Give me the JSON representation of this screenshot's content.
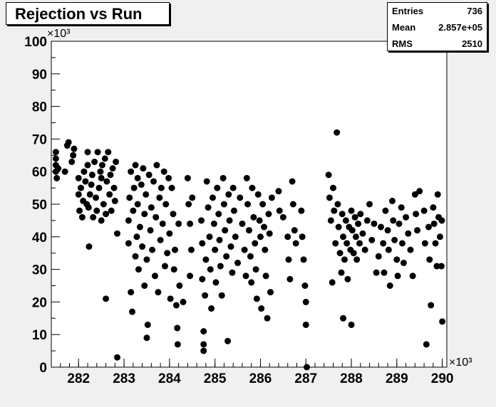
{
  "title": "Rejection vs Run",
  "stats": [
    {
      "label": "Entries",
      "value": "736"
    },
    {
      "label": "Mean",
      "value": "2.857e+05"
    },
    {
      "label": "RMS",
      "value": "2510"
    }
  ],
  "chart_data": {
    "type": "scatter",
    "title": "Rejection vs Run",
    "xlabel": "",
    "ylabel": "",
    "x_multiplier": "×10³",
    "y_multiplier": "×10³",
    "xlim": [
      281.4,
      290.1
    ],
    "ylim": [
      0,
      100
    ],
    "x_ticks": [
      282,
      283,
      284,
      285,
      286,
      287,
      288,
      289,
      290
    ],
    "y_ticks": [
      0,
      10,
      20,
      30,
      40,
      50,
      60,
      70,
      80,
      90,
      100
    ],
    "grid": false,
    "legend": "none",
    "marker_color": "#000000",
    "series": [
      {
        "points": [
          [
            281.5,
            60
          ],
          [
            281.5,
            62
          ],
          [
            281.5,
            64
          ],
          [
            281.5,
            66
          ],
          [
            281.52,
            58
          ],
          [
            281.55,
            61
          ],
          [
            281.7,
            60
          ],
          [
            281.75,
            68
          ],
          [
            281.78,
            69
          ],
          [
            281.85,
            63
          ],
          [
            281.88,
            65
          ],
          [
            281.9,
            67
          ],
          [
            282.0,
            53
          ],
          [
            282.0,
            58
          ],
          [
            282.02,
            48
          ],
          [
            282.05,
            55
          ],
          [
            282.08,
            46
          ],
          [
            282.1,
            51
          ],
          [
            282.12,
            60
          ],
          [
            282.15,
            57
          ],
          [
            282.18,
            50
          ],
          [
            282.2,
            62
          ],
          [
            282.2,
            66
          ],
          [
            282.22,
            49
          ],
          [
            282.23,
            37
          ],
          [
            282.25,
            53
          ],
          [
            282.28,
            56
          ],
          [
            282.3,
            59
          ],
          [
            282.32,
            46
          ],
          [
            282.35,
            63
          ],
          [
            282.38,
            52
          ],
          [
            282.4,
            48
          ],
          [
            282.42,
            66
          ],
          [
            282.45,
            55
          ],
          [
            282.48,
            60
          ],
          [
            282.5,
            45
          ],
          [
            282.5,
            58
          ],
          [
            282.52,
            62
          ],
          [
            282.55,
            50
          ],
          [
            282.58,
            64
          ],
          [
            282.6,
            47
          ],
          [
            282.62,
            57
          ],
          [
            282.65,
            66
          ],
          [
            282.68,
            53
          ],
          [
            282.7,
            59
          ],
          [
            282.72,
            48
          ],
          [
            282.75,
            61
          ],
          [
            282.78,
            55
          ],
          [
            282.8,
            51
          ],
          [
            282.82,
            63
          ],
          [
            282.85,
            41
          ],
          [
            282.85,
            3
          ],
          [
            282.6,
            21
          ],
          [
            283.1,
            38
          ],
          [
            283.1,
            45
          ],
          [
            283.12,
            52
          ],
          [
            283.15,
            60
          ],
          [
            283.15,
            23
          ],
          [
            283.18,
            17
          ],
          [
            283.2,
            48
          ],
          [
            283.22,
            55
          ],
          [
            283.25,
            34
          ],
          [
            283.25,
            62
          ],
          [
            283.28,
            40
          ],
          [
            283.3,
            50
          ],
          [
            283.3,
            58
          ],
          [
            283.32,
            30
          ],
          [
            283.35,
            43
          ],
          [
            283.38,
            56
          ],
          [
            283.4,
            37
          ],
          [
            283.42,
            61
          ],
          [
            283.45,
            47
          ],
          [
            283.45,
            25
          ],
          [
            283.48,
            53
          ],
          [
            283.5,
            33
          ],
          [
            283.5,
            9
          ],
          [
            283.52,
            13
          ],
          [
            283.55,
            59
          ],
          [
            283.58,
            42
          ],
          [
            283.6,
            49
          ],
          [
            283.62,
            36
          ],
          [
            283.65,
            57
          ],
          [
            283.68,
            28
          ],
          [
            283.7,
            46
          ],
          [
            283.72,
            62
          ],
          [
            283.75,
            23
          ],
          [
            283.78,
            52
          ],
          [
            283.8,
            39
          ],
          [
            283.82,
            55
          ],
          [
            283.85,
            44
          ],
          [
            283.88,
            60
          ],
          [
            283.9,
            31
          ],
          [
            283.92,
            50
          ],
          [
            283.95,
            35
          ],
          [
            283.98,
            58
          ],
          [
            284.0,
            41
          ],
          [
            284.02,
            21
          ],
          [
            284.05,
            55
          ],
          [
            284.08,
            47
          ],
          [
            284.1,
            30
          ],
          [
            284.12,
            36
          ],
          [
            284.15,
            19
          ],
          [
            284.17,
            12
          ],
          [
            284.18,
            7
          ],
          [
            284.2,
            44
          ],
          [
            284.22,
            25
          ],
          [
            284.3,
            20
          ],
          [
            284.4,
            58
          ],
          [
            284.42,
            50
          ],
          [
            284.45,
            44
          ],
          [
            284.45,
            28
          ],
          [
            284.48,
            36
          ],
          [
            284.5,
            52
          ],
          [
            284.7,
            45
          ],
          [
            284.72,
            38
          ],
          [
            284.72,
            27
          ],
          [
            284.75,
            11
          ],
          [
            284.75,
            7
          ],
          [
            284.75,
            5
          ],
          [
            284.78,
            22
          ],
          [
            284.8,
            33
          ],
          [
            284.82,
            57
          ],
          [
            284.85,
            49
          ],
          [
            284.88,
            40
          ],
          [
            284.9,
            30
          ],
          [
            284.92,
            18
          ],
          [
            284.95,
            52
          ],
          [
            284.98,
            44
          ],
          [
            285.0,
            36
          ],
          [
            285.02,
            26
          ],
          [
            285.05,
            55
          ],
          [
            285.08,
            47
          ],
          [
            285.1,
            39
          ],
          [
            285.12,
            31
          ],
          [
            285.15,
            22
          ],
          [
            285.18,
            58
          ],
          [
            285.2,
            50
          ],
          [
            285.22,
            42
          ],
          [
            285.25,
            34
          ],
          [
            285.28,
            8
          ],
          [
            285.3,
            53
          ],
          [
            285.32,
            45
          ],
          [
            285.35,
            37
          ],
          [
            285.38,
            29
          ],
          [
            285.4,
            55
          ],
          [
            285.42,
            48
          ],
          [
            285.45,
            40
          ],
          [
            285.5,
            32
          ],
          [
            285.55,
            52
          ],
          [
            285.6,
            44
          ],
          [
            285.65,
            36
          ],
          [
            285.68,
            28
          ],
          [
            285.7,
            58
          ],
          [
            285.72,
            50
          ],
          [
            285.75,
            42
          ],
          [
            285.78,
            34
          ],
          [
            285.8,
            26
          ],
          [
            285.82,
            55
          ],
          [
            285.85,
            46
          ],
          [
            285.88,
            38
          ],
          [
            285.9,
            30
          ],
          [
            285.92,
            21
          ],
          [
            285.95,
            53
          ],
          [
            285.98,
            45
          ],
          [
            286.0,
            40
          ],
          [
            286.02,
            18
          ],
          [
            286.05,
            50
          ],
          [
            286.08,
            43
          ],
          [
            286.1,
            36
          ],
          [
            286.12,
            28
          ],
          [
            286.15,
            15
          ],
          [
            286.18,
            47
          ],
          [
            286.2,
            41
          ],
          [
            286.22,
            23
          ],
          [
            286.25,
            52
          ],
          [
            286.4,
            54
          ],
          [
            286.42,
            48
          ],
          [
            286.5,
            46
          ],
          [
            286.6,
            40
          ],
          [
            286.62,
            33
          ],
          [
            286.65,
            27
          ],
          [
            286.7,
            57
          ],
          [
            286.72,
            50
          ],
          [
            286.75,
            42
          ],
          [
            286.78,
            38
          ],
          [
            286.9,
            48
          ],
          [
            286.92,
            40
          ],
          [
            286.95,
            33
          ],
          [
            286.98,
            25
          ],
          [
            287.0,
            20
          ],
          [
            287.0,
            13
          ],
          [
            287.02,
            0
          ],
          [
            287.5,
            59
          ],
          [
            287.52,
            52
          ],
          [
            287.55,
            45
          ],
          [
            287.58,
            26
          ],
          [
            287.6,
            55
          ],
          [
            287.62,
            48
          ],
          [
            287.65,
            38
          ],
          [
            287.68,
            72
          ],
          [
            287.7,
            50
          ],
          [
            287.72,
            43
          ],
          [
            287.75,
            35
          ],
          [
            287.78,
            29
          ],
          [
            287.8,
            47
          ],
          [
            287.82,
            40
          ],
          [
            287.82,
            15
          ],
          [
            287.85,
            33
          ],
          [
            287.88,
            45
          ],
          [
            287.9,
            38
          ],
          [
            287.92,
            27
          ],
          [
            287.95,
            43
          ],
          [
            287.98,
            36
          ],
          [
            288.0,
            48
          ],
          [
            288.0,
            13
          ],
          [
            288.02,
            42
          ],
          [
            288.05,
            35
          ],
          [
            288.08,
            46
          ],
          [
            288.1,
            40
          ],
          [
            288.12,
            33
          ],
          [
            288.15,
            44
          ],
          [
            288.18,
            38
          ],
          [
            288.2,
            47
          ],
          [
            288.25,
            41
          ],
          [
            288.3,
            36
          ],
          [
            288.35,
            45
          ],
          [
            288.4,
            50
          ],
          [
            288.45,
            39
          ],
          [
            288.5,
            44
          ],
          [
            288.55,
            29
          ],
          [
            288.6,
            34
          ],
          [
            288.65,
            43
          ],
          [
            288.7,
            38
          ],
          [
            288.72,
            29
          ],
          [
            288.75,
            48
          ],
          [
            288.8,
            42
          ],
          [
            288.82,
            36
          ],
          [
            288.85,
            25
          ],
          [
            288.9,
            51
          ],
          [
            288.92,
            45
          ],
          [
            288.95,
            39
          ],
          [
            289.0,
            33
          ],
          [
            289.02,
            28
          ],
          [
            289.05,
            44
          ],
          [
            289.1,
            49
          ],
          [
            289.12,
            38
          ],
          [
            289.15,
            32
          ],
          [
            289.2,
            46
          ],
          [
            289.25,
            41
          ],
          [
            289.3,
            36
          ],
          [
            289.35,
            28
          ],
          [
            289.4,
            53
          ],
          [
            289.42,
            47
          ],
          [
            289.45,
            42
          ],
          [
            289.5,
            54
          ],
          [
            289.6,
            48
          ],
          [
            289.62,
            38
          ],
          [
            289.65,
            7
          ],
          [
            289.7,
            43
          ],
          [
            289.72,
            33
          ],
          [
            289.75,
            19
          ],
          [
            289.8,
            49
          ],
          [
            289.82,
            44
          ],
          [
            289.85,
            38
          ],
          [
            289.88,
            31
          ],
          [
            289.9,
            53
          ],
          [
            289.92,
            46
          ],
          [
            289.95,
            40
          ],
          [
            289.98,
            31
          ],
          [
            290.0,
            14
          ],
          [
            289.99,
            45
          ]
        ]
      }
    ]
  }
}
